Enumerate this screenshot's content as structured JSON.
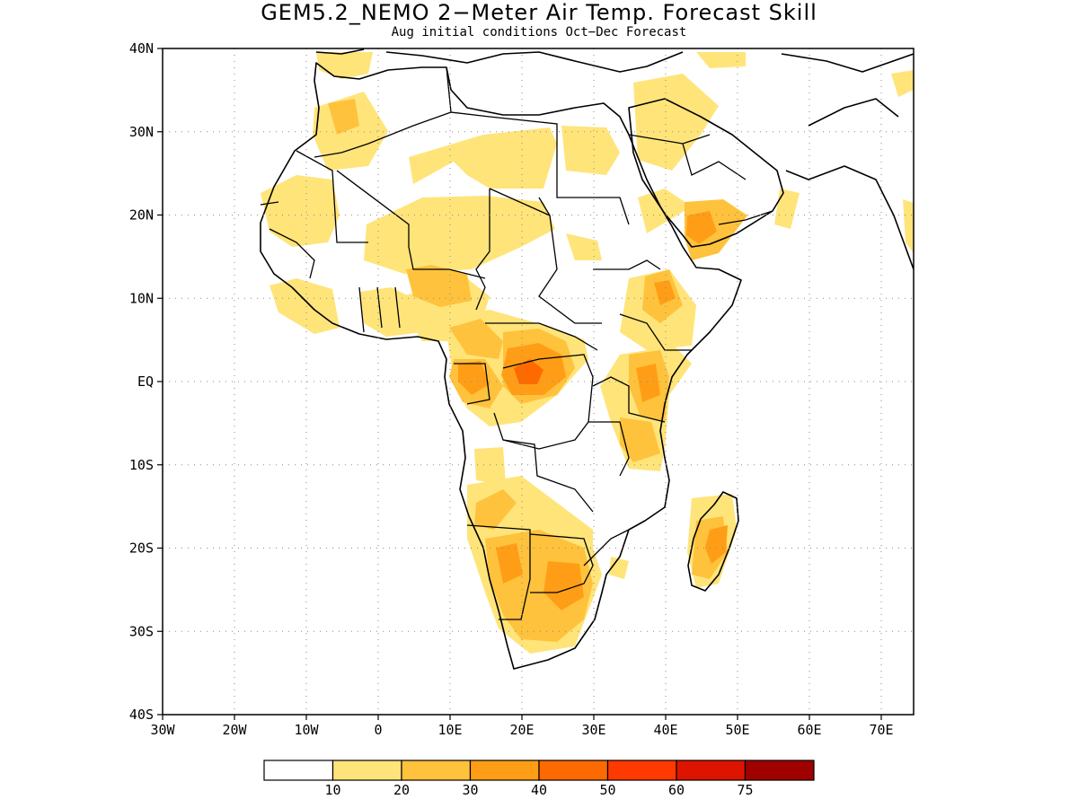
{
  "title": "GEM5.2_NEMO 2−Meter Air Temp. Forecast Skill",
  "subtitle": "Aug initial conditions  Oct−Dec Forecast",
  "lat_labels": [
    "40N",
    "30N",
    "20N",
    "10N",
    "EQ",
    "10S",
    "20S",
    "30S",
    "40S"
  ],
  "lon_labels": [
    "30W",
    "20W",
    "10W",
    "0",
    "10E",
    "20E",
    "30E",
    "40E",
    "50E",
    "60E",
    "70E"
  ],
  "colorbar": {
    "colors": [
      "#ffffff",
      "#ffe47a",
      "#ffc23c",
      "#ff9e16",
      "#ff6a00",
      "#ff3a00",
      "#dd1400",
      "#a00000"
    ],
    "labels": [
      "10",
      "20",
      "30",
      "40",
      "50",
      "60",
      "75"
    ]
  }
}
